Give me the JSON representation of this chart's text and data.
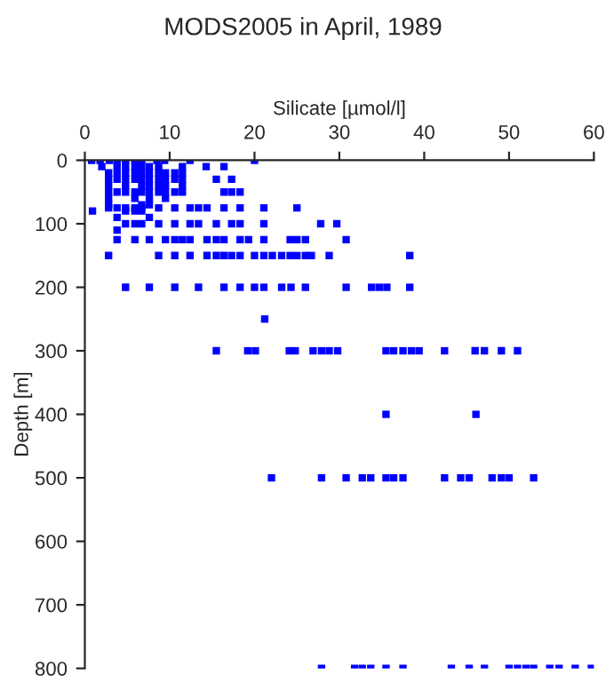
{
  "chart_data": {
    "type": "scatter",
    "title": "MODS2005 in April, 1989",
    "xlabel": "Silicate [µmol/l]",
    "ylabel": "Depth [m]",
    "xlim": [
      0,
      60
    ],
    "xticks": [
      0,
      10,
      20,
      30,
      40,
      50,
      60
    ],
    "ylim": [
      800,
      0
    ],
    "yticks": [
      0,
      100,
      200,
      300,
      400,
      500,
      600,
      700,
      800
    ],
    "grid": false,
    "marker": "square",
    "series": [
      {
        "color": "#0000ff",
        "x": [
          0.8,
          1.8,
          2.9,
          3.8,
          4.8,
          5.9,
          6.7,
          8.5,
          9.4,
          12.4,
          20.0,
          2.0,
          3.8,
          4.8,
          5.9,
          6.7,
          7.6,
          8.7,
          11.5,
          14.3,
          16.4,
          2.8,
          3.8,
          4.8,
          5.9,
          6.7,
          7.6,
          8.7,
          9.5,
          10.6,
          11.5,
          2.8,
          3.8,
          4.8,
          5.9,
          6.7,
          7.6,
          8.7,
          9.5,
          10.6,
          11.5,
          15.5,
          17.3,
          2.8,
          4.8,
          6.7,
          7.6,
          8.7,
          9.5,
          11.5,
          2.8,
          3.8,
          4.8,
          5.9,
          6.7,
          7.6,
          8.7,
          9.5,
          10.6,
          11.5,
          16.4,
          17.3,
          18.3,
          2.8,
          5.9,
          7.6,
          9.5,
          2.8,
          6.7,
          7.6,
          2.8,
          3.8,
          4.8,
          5.9,
          6.7,
          8.7,
          10.6,
          12.4,
          13.4,
          14.4,
          16.4,
          18.3,
          21.1,
          25.0,
          0.9,
          4.8,
          5.9,
          6.7,
          3.8,
          7.6,
          4.8,
          5.9,
          6.7,
          8.7,
          10.6,
          12.4,
          13.4,
          15.5,
          17.3,
          18.3,
          21.1,
          27.8,
          29.7,
          3.8,
          3.8,
          5.9,
          7.6,
          9.5,
          10.6,
          11.5,
          12.4,
          14.4,
          15.5,
          16.4,
          18.3,
          19.3,
          21.1,
          24.2,
          25.0,
          26.0,
          30.8,
          2.8,
          8.7,
          10.6,
          12.4,
          14.4,
          15.5,
          16.4,
          17.3,
          18.3,
          20.0,
          21.1,
          22.1,
          23.2,
          24.2,
          25.0,
          26.0,
          26.7,
          28.8,
          38.3,
          4.8,
          7.6,
          10.6,
          13.4,
          16.4,
          18.3,
          20.0,
          21.1,
          23.2,
          24.3,
          26.0,
          30.8,
          33.8,
          34.7,
          35.6,
          38.3,
          21.2,
          15.5,
          19.2,
          20.1,
          24.1,
          24.8,
          26.9,
          27.9,
          28.8,
          29.8,
          35.5,
          36.4,
          37.5,
          38.5,
          39.4,
          42.4,
          46.0,
          47.1,
          49.1,
          51.0,
          35.5,
          46.1,
          22.0,
          27.9,
          30.8,
          32.7,
          33.7,
          35.5,
          36.4,
          37.5,
          42.4,
          44.3,
          45.3,
          48.0,
          49.1,
          50.0,
          52.9,
          27.9,
          31.8,
          32.7,
          33.7,
          35.5,
          37.5,
          43.2,
          45.3,
          47.1,
          50.0,
          51.0,
          52.0,
          52.9,
          54.8,
          55.9,
          57.8,
          59.7
        ],
        "values": [
          0,
          0,
          0,
          0,
          0,
          0,
          0,
          0,
          0,
          0,
          0,
          10,
          10,
          10,
          10,
          10,
          10,
          10,
          10,
          10,
          10,
          20,
          20,
          20,
          20,
          20,
          20,
          20,
          20,
          20,
          20,
          30,
          30,
          30,
          30,
          30,
          30,
          30,
          30,
          30,
          30,
          30,
          30,
          40,
          40,
          40,
          40,
          40,
          40,
          40,
          50,
          50,
          50,
          50,
          50,
          50,
          50,
          50,
          50,
          50,
          50,
          50,
          50,
          60,
          60,
          60,
          60,
          70,
          70,
          70,
          75,
          75,
          75,
          75,
          75,
          75,
          75,
          75,
          75,
          75,
          75,
          75,
          75,
          75,
          80,
          80,
          80,
          80,
          90,
          90,
          100,
          100,
          100,
          100,
          100,
          100,
          100,
          100,
          100,
          100,
          100,
          100,
          100,
          110,
          125,
          125,
          125,
          125,
          125,
          125,
          125,
          125,
          125,
          125,
          125,
          125,
          125,
          125,
          125,
          125,
          125,
          150,
          150,
          150,
          150,
          150,
          150,
          150,
          150,
          150,
          150,
          150,
          150,
          150,
          150,
          150,
          150,
          150,
          150,
          150,
          200,
          200,
          200,
          200,
          200,
          200,
          200,
          200,
          200,
          200,
          200,
          200,
          200,
          200,
          200,
          200,
          250,
          300,
          300,
          300,
          300,
          300,
          300,
          300,
          300,
          300,
          300,
          300,
          300,
          300,
          300,
          300,
          300,
          300,
          300,
          300,
          400,
          400,
          500,
          500,
          500,
          500,
          500,
          500,
          500,
          500,
          500,
          500,
          500,
          500,
          500,
          500,
          500,
          800,
          800,
          800,
          800,
          800,
          800,
          800,
          800,
          800,
          800,
          800,
          800,
          800,
          800,
          800,
          800,
          800
        ]
      }
    ]
  }
}
